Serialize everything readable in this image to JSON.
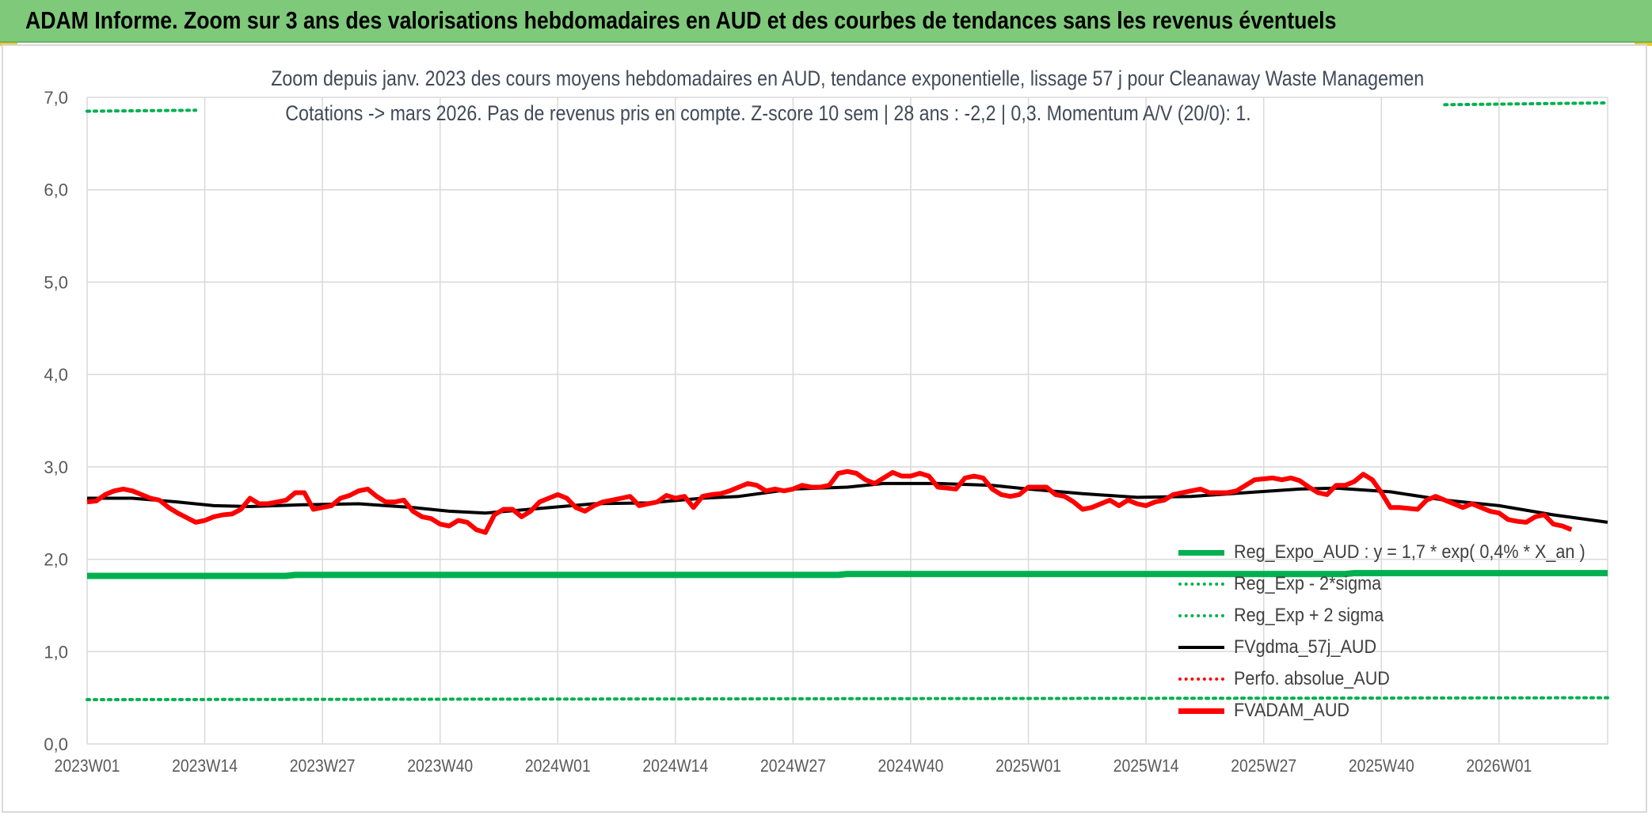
{
  "banner": {
    "title": "ADAM Informe. Zoom sur 3 ans des valorisations hebdomadaires en AUD et des courbes de tendances sans les revenus éventuels"
  },
  "chart_data": {
    "type": "line",
    "title_line1": "Zoom depuis janv. 2023 des cours moyens hebdomadaires en AUD, tendance exponentielle, lissage 57 j pour Cleanaway Waste Managemen",
    "title_line2": "Cotations -> mars 2026. Pas de revenus pris en compte. Z-score 10 sem | 28 ans : -2,2 | 0,3. Momentum A/V (20/0): 1.",
    "ylim": [
      0,
      7
    ],
    "yticks": [
      "0,0",
      "1,0",
      "2,0",
      "3,0",
      "4,0",
      "5,0",
      "6,0",
      "7,0"
    ],
    "xticks": [
      "2023W01",
      "2023W14",
      "2023W27",
      "2023W40",
      "2024W01",
      "2024W14",
      "2024W27",
      "2024W40",
      "2025W01",
      "2025W14",
      "2025W27",
      "2025W40",
      "2026W01"
    ],
    "x_week_count": 169,
    "grid": true,
    "legend_position": "bottom-right",
    "colors": {
      "reg_expo": "#00b050",
      "gdma": "#000000",
      "perfo": "#ff0000",
      "fvadam": "#ff0000",
      "grid": "#d9d9d9",
      "axis_text": "#595959"
    },
    "series": [
      {
        "name": "Reg_Expo_AUD : y = 1,7 * exp( 0,4% *  X_an )",
        "key": "reg_expo",
        "style": "solid-thick",
        "points": [
          [
            0,
            1.82
          ],
          [
            22,
            1.82
          ],
          [
            23,
            1.83
          ],
          [
            83,
            1.83
          ],
          [
            84,
            1.84
          ],
          [
            139,
            1.84
          ],
          [
            140,
            1.85
          ],
          [
            168,
            1.85
          ]
        ]
      },
      {
        "name": "Reg_Exp - 2*sigma",
        "key": "reg_minus",
        "style": "dotted",
        "points": [
          [
            0,
            0.48
          ],
          [
            168,
            0.5
          ]
        ]
      },
      {
        "name": "Reg_Exp + 2 sigma",
        "key": "reg_plus",
        "style": "dotted",
        "points": [
          [
            0,
            6.85
          ],
          [
            12,
            6.86
          ]
        ],
        "points_b": [
          [
            150,
            6.92
          ],
          [
            168,
            6.94
          ]
        ]
      },
      {
        "name": "FVgdma_57j_AUD",
        "key": "gdma",
        "style": "solid",
        "points": [
          [
            0,
            2.66
          ],
          [
            5,
            2.66
          ],
          [
            10,
            2.62
          ],
          [
            14,
            2.58
          ],
          [
            18,
            2.57
          ],
          [
            24,
            2.59
          ],
          [
            30,
            2.6
          ],
          [
            36,
            2.56
          ],
          [
            40,
            2.52
          ],
          [
            44,
            2.5
          ],
          [
            50,
            2.55
          ],
          [
            56,
            2.6
          ],
          [
            62,
            2.61
          ],
          [
            68,
            2.66
          ],
          [
            72,
            2.68
          ],
          [
            78,
            2.76
          ],
          [
            84,
            2.78
          ],
          [
            88,
            2.82
          ],
          [
            94,
            2.82
          ],
          [
            100,
            2.8
          ],
          [
            104,
            2.76
          ],
          [
            110,
            2.71
          ],
          [
            116,
            2.67
          ],
          [
            122,
            2.68
          ],
          [
            128,
            2.72
          ],
          [
            134,
            2.76
          ],
          [
            138,
            2.77
          ],
          [
            144,
            2.73
          ],
          [
            150,
            2.64
          ],
          [
            156,
            2.58
          ],
          [
            162,
            2.48
          ],
          [
            168,
            2.4
          ]
        ]
      },
      {
        "name": "Perfo. absolue_AUD",
        "key": "perfo",
        "style": "dotted-red",
        "points": []
      },
      {
        "name": "FVADAM_AUD",
        "key": "fvadam",
        "style": "solid-thick",
        "points": [
          [
            0,
            2.62
          ],
          [
            1,
            2.63
          ],
          [
            2,
            2.7
          ],
          [
            3,
            2.74
          ],
          [
            4,
            2.76
          ],
          [
            5,
            2.74
          ],
          [
            6,
            2.7
          ],
          [
            7,
            2.66
          ],
          [
            8,
            2.64
          ],
          [
            9,
            2.56
          ],
          [
            10,
            2.5
          ],
          [
            11,
            2.45
          ],
          [
            12,
            2.4
          ],
          [
            13,
            2.42
          ],
          [
            14,
            2.46
          ],
          [
            15,
            2.48
          ],
          [
            16,
            2.49
          ],
          [
            17,
            2.54
          ],
          [
            18,
            2.66
          ],
          [
            19,
            2.6
          ],
          [
            20,
            2.6
          ],
          [
            21,
            2.62
          ],
          [
            22,
            2.64
          ],
          [
            23,
            2.72
          ],
          [
            24,
            2.72
          ],
          [
            25,
            2.54
          ],
          [
            26,
            2.56
          ],
          [
            27,
            2.58
          ],
          [
            28,
            2.66
          ],
          [
            29,
            2.69
          ],
          [
            30,
            2.74
          ],
          [
            31,
            2.76
          ],
          [
            32,
            2.68
          ],
          [
            33,
            2.62
          ],
          [
            34,
            2.62
          ],
          [
            35,
            2.64
          ],
          [
            36,
            2.52
          ],
          [
            37,
            2.46
          ],
          [
            38,
            2.44
          ],
          [
            39,
            2.38
          ],
          [
            40,
            2.36
          ],
          [
            41,
            2.42
          ],
          [
            42,
            2.4
          ],
          [
            43,
            2.32
          ],
          [
            44,
            2.29
          ],
          [
            45,
            2.48
          ],
          [
            46,
            2.54
          ],
          [
            47,
            2.54
          ],
          [
            48,
            2.46
          ],
          [
            49,
            2.52
          ],
          [
            50,
            2.62
          ],
          [
            51,
            2.66
          ],
          [
            52,
            2.7
          ],
          [
            53,
            2.66
          ],
          [
            54,
            2.56
          ],
          [
            55,
            2.52
          ],
          [
            56,
            2.58
          ],
          [
            57,
            2.62
          ],
          [
            58,
            2.64
          ],
          [
            59,
            2.66
          ],
          [
            60,
            2.68
          ],
          [
            61,
            2.58
          ],
          [
            62,
            2.6
          ],
          [
            63,
            2.62
          ],
          [
            64,
            2.69
          ],
          [
            65,
            2.66
          ],
          [
            66,
            2.68
          ],
          [
            67,
            2.56
          ],
          [
            68,
            2.68
          ],
          [
            69,
            2.7
          ],
          [
            70,
            2.71
          ],
          [
            71,
            2.74
          ],
          [
            72,
            2.78
          ],
          [
            73,
            2.82
          ],
          [
            74,
            2.8
          ],
          [
            75,
            2.74
          ],
          [
            76,
            2.76
          ],
          [
            77,
            2.74
          ],
          [
            78,
            2.76
          ],
          [
            79,
            2.8
          ],
          [
            80,
            2.78
          ],
          [
            81,
            2.78
          ],
          [
            82,
            2.8
          ],
          [
            83,
            2.93
          ],
          [
            84,
            2.95
          ],
          [
            85,
            2.93
          ],
          [
            86,
            2.86
          ],
          [
            87,
            2.82
          ],
          [
            88,
            2.88
          ],
          [
            89,
            2.94
          ],
          [
            90,
            2.9
          ],
          [
            91,
            2.9
          ],
          [
            92,
            2.93
          ],
          [
            93,
            2.9
          ],
          [
            94,
            2.78
          ],
          [
            95,
            2.77
          ],
          [
            96,
            2.76
          ],
          [
            97,
            2.88
          ],
          [
            98,
            2.9
          ],
          [
            99,
            2.88
          ],
          [
            100,
            2.76
          ],
          [
            101,
            2.7
          ],
          [
            102,
            2.68
          ],
          [
            103,
            2.7
          ],
          [
            104,
            2.78
          ],
          [
            105,
            2.78
          ],
          [
            106,
            2.78
          ],
          [
            107,
            2.7
          ],
          [
            108,
            2.68
          ],
          [
            109,
            2.62
          ],
          [
            110,
            2.54
          ],
          [
            111,
            2.56
          ],
          [
            112,
            2.6
          ],
          [
            113,
            2.64
          ],
          [
            114,
            2.58
          ],
          [
            115,
            2.64
          ],
          [
            116,
            2.6
          ],
          [
            117,
            2.58
          ],
          [
            118,
            2.62
          ],
          [
            119,
            2.64
          ],
          [
            120,
            2.7
          ],
          [
            121,
            2.72
          ],
          [
            122,
            2.74
          ],
          [
            123,
            2.76
          ],
          [
            124,
            2.72
          ],
          [
            125,
            2.72
          ],
          [
            126,
            2.72
          ],
          [
            127,
            2.74
          ],
          [
            128,
            2.8
          ],
          [
            129,
            2.86
          ],
          [
            130,
            2.87
          ],
          [
            131,
            2.88
          ],
          [
            132,
            2.86
          ],
          [
            133,
            2.88
          ],
          [
            134,
            2.85
          ],
          [
            135,
            2.78
          ],
          [
            136,
            2.72
          ],
          [
            137,
            2.7
          ],
          [
            138,
            2.8
          ],
          [
            139,
            2.8
          ],
          [
            140,
            2.84
          ],
          [
            141,
            2.92
          ],
          [
            142,
            2.86
          ],
          [
            143,
            2.72
          ],
          [
            144,
            2.56
          ],
          [
            145,
            2.56
          ],
          [
            146,
            2.55
          ],
          [
            147,
            2.54
          ],
          [
            148,
            2.64
          ],
          [
            149,
            2.68
          ],
          [
            150,
            2.64
          ],
          [
            151,
            2.6
          ],
          [
            152,
            2.56
          ],
          [
            153,
            2.6
          ],
          [
            154,
            2.56
          ],
          [
            155,
            2.52
          ],
          [
            156,
            2.5
          ],
          [
            157,
            2.43
          ],
          [
            158,
            2.41
          ],
          [
            159,
            2.4
          ],
          [
            160,
            2.46
          ],
          [
            161,
            2.48
          ],
          [
            162,
            2.38
          ],
          [
            163,
            2.36
          ],
          [
            164,
            2.32
          ]
        ]
      }
    ]
  }
}
